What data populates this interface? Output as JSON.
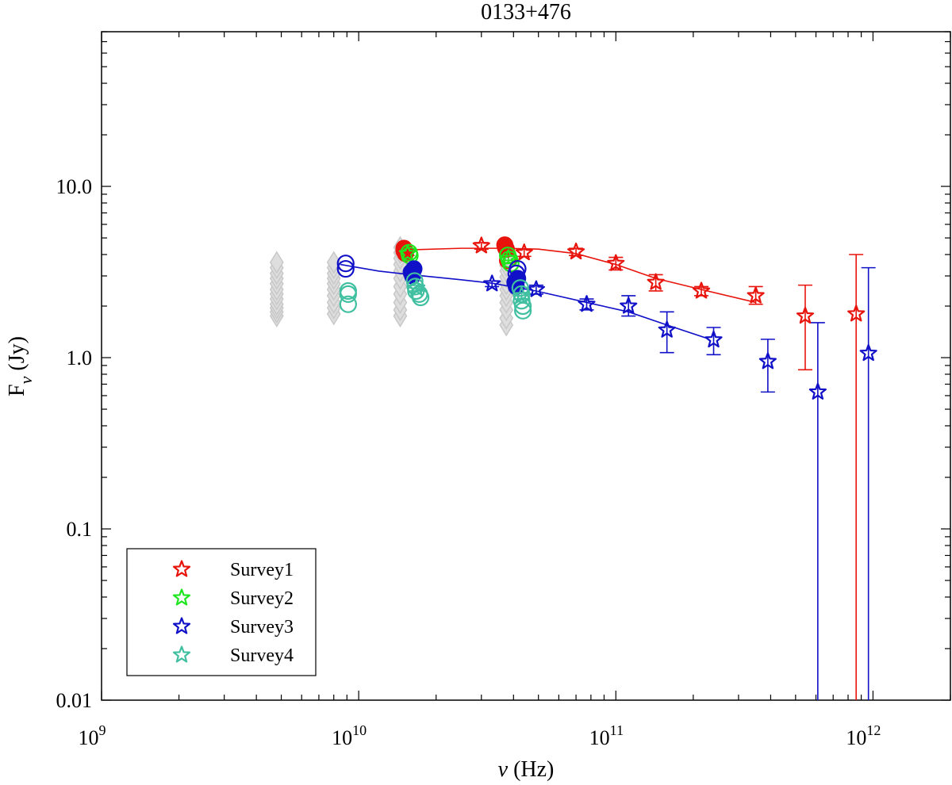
{
  "chart_data": {
    "type": "scatter",
    "title": "0133+476",
    "xlabel_sym": "ν",
    "xlabel_unit": " (Hz)",
    "ylabel_main": "F",
    "ylabel_sub": "ν",
    "ylabel_unit": " (Jy)",
    "x_scale": "log",
    "y_scale": "log",
    "xlim": [
      1000000000.0,
      2000000000000.0
    ],
    "ylim": [
      0.01,
      80
    ],
    "x_ticks": [
      {
        "value": 1000000000.0,
        "base": "10",
        "exp": "9"
      },
      {
        "value": 10000000000.0,
        "base": "10",
        "exp": "10"
      },
      {
        "value": 100000000000.0,
        "base": "10",
        "exp": "11"
      },
      {
        "value": 1000000000000.0,
        "base": "10",
        "exp": "12"
      }
    ],
    "y_ticks": [
      {
        "value": 0.01,
        "label": "0.01"
      },
      {
        "value": 0.1,
        "label": "0.1"
      },
      {
        "value": 1,
        "label": "1.0"
      },
      {
        "value": 10,
        "label": "10.0"
      }
    ],
    "legend_position": "bottom-left",
    "grey_diamonds": [
      {
        "x": 4800000000.0,
        "y": [
          1.75,
          1.85,
          1.95,
          2.05,
          2.2,
          2.35,
          2.5,
          2.7,
          2.9,
          3.1,
          3.35,
          3.6
        ]
      },
      {
        "x": 8000000000.0,
        "y": [
          1.8,
          1.95,
          2.1,
          2.3,
          2.5,
          2.7,
          2.9,
          3.1,
          3.35,
          3.6
        ]
      },
      {
        "x": 14500000000.0,
        "y": [
          1.75,
          1.9,
          2.1,
          2.35,
          2.6,
          2.9,
          3.2,
          3.5,
          3.8,
          4.1,
          4.4
        ]
      },
      {
        "x": 37500000000.0,
        "y": [
          1.55,
          1.7,
          1.9,
          2.1,
          2.3,
          2.5,
          2.7,
          2.95,
          3.2,
          3.45,
          3.7,
          3.95
        ]
      }
    ],
    "series": [
      {
        "name": "Survey1",
        "color": "#e8140c",
        "filled_circles": [
          {
            "x": 15000000000.0,
            "y": 4.35
          },
          {
            "x": 15000000000.0,
            "y": 4.2
          },
          {
            "x": 15200000000.0,
            "y": 4.05
          },
          {
            "x": 37000000000.0,
            "y": 4.55
          },
          {
            "x": 37200000000.0,
            "y": 4.4
          },
          {
            "x": 37500000000.0,
            "y": 4.3
          }
        ],
        "open_circles": [
          {
            "x": 38000000000.0,
            "y": 3.7
          }
        ],
        "stars": [
          {
            "x": 30000000000.0,
            "y": 4.5,
            "lo": 4.3,
            "hi": 4.7
          },
          {
            "x": 44000000000.0,
            "y": 4.1,
            "lo": 3.9,
            "hi": 4.3
          },
          {
            "x": 70000000000.0,
            "y": 4.15,
            "lo": 3.95,
            "hi": 4.35
          },
          {
            "x": 100000000000.0,
            "y": 3.55,
            "lo": 3.25,
            "hi": 3.85
          },
          {
            "x": 143000000000.0,
            "y": 2.75,
            "lo": 2.45,
            "hi": 3.05
          },
          {
            "x": 215000000000.0,
            "y": 2.45,
            "lo": 2.3,
            "hi": 2.6
          },
          {
            "x": 350000000000.0,
            "y": 2.3,
            "lo": 2.05,
            "hi": 2.6
          },
          {
            "x": 545000000000.0,
            "y": 1.75,
            "lo": 0.85,
            "hi": 2.65
          },
          {
            "x": 860000000000.0,
            "y": 1.8,
            "lo": 0.01,
            "hi": 4.0
          }
        ],
        "fit_line": [
          {
            "x": 15000000000.0,
            "y": 4.25
          },
          {
            "x": 25000000000.0,
            "y": 4.35
          },
          {
            "x": 37000000000.0,
            "y": 4.35
          },
          {
            "x": 50000000000.0,
            "y": 4.3
          },
          {
            "x": 70000000000.0,
            "y": 4.05
          },
          {
            "x": 100000000000.0,
            "y": 3.5
          },
          {
            "x": 143000000000.0,
            "y": 2.9
          },
          {
            "x": 215000000000.0,
            "y": 2.5
          },
          {
            "x": 350000000000.0,
            "y": 2.1
          }
        ]
      },
      {
        "name": "Survey2",
        "color": "#1ee61e",
        "filled_circles": [],
        "open_circles": [
          {
            "x": 15700000000.0,
            "y": 4.1
          },
          {
            "x": 15800000000.0,
            "y": 3.95
          },
          {
            "x": 38000000000.0,
            "y": 3.95
          },
          {
            "x": 38500000000.0,
            "y": 3.75
          },
          {
            "x": 39000000000.0,
            "y": 3.55
          }
        ],
        "stars": [
          {
            "x": 15500000000.0,
            "y": 4.05,
            "lo": 3.95,
            "hi": 4.15
          },
          {
            "x": 38200000000.0,
            "y": 3.8,
            "lo": 3.7,
            "hi": 3.9
          }
        ],
        "fit_line": []
      },
      {
        "name": "Survey3",
        "color": "#1010c8",
        "filled_circles": [
          {
            "x": 16000000000.0,
            "y": 3.15
          },
          {
            "x": 16200000000.0,
            "y": 3.0
          },
          {
            "x": 16400000000.0,
            "y": 3.3
          },
          {
            "x": 40500000000.0,
            "y": 2.75
          },
          {
            "x": 41000000000.0,
            "y": 2.6
          },
          {
            "x": 41500000000.0,
            "y": 2.9
          }
        ],
        "open_circles": [
          {
            "x": 8900000000.0,
            "y": 3.55
          },
          {
            "x": 8900000000.0,
            "y": 3.3
          },
          {
            "x": 41000000000.0,
            "y": 3.1
          },
          {
            "x": 41500000000.0,
            "y": 3.3
          }
        ],
        "stars": [
          {
            "x": 33000000000.0,
            "y": 2.7,
            "lo": 2.6,
            "hi": 2.8
          },
          {
            "x": 49000000000.0,
            "y": 2.5,
            "lo": 2.35,
            "hi": 2.65
          },
          {
            "x": 77000000000.0,
            "y": 2.05,
            "lo": 1.9,
            "hi": 2.2
          },
          {
            "x": 112000000000.0,
            "y": 2.0,
            "lo": 1.75,
            "hi": 2.3
          },
          {
            "x": 158000000000.0,
            "y": 1.45,
            "lo": 1.07,
            "hi": 1.85
          },
          {
            "x": 240000000000.0,
            "y": 1.27,
            "lo": 1.04,
            "hi": 1.5
          },
          {
            "x": 390000000000.0,
            "y": 0.95,
            "lo": 0.63,
            "hi": 1.28
          },
          {
            "x": 610000000000.0,
            "y": 0.63,
            "lo": 0.01,
            "hi": 1.6
          },
          {
            "x": 960000000000.0,
            "y": 1.06,
            "lo": 0.01,
            "hi": 3.35
          }
        ],
        "fit_line": [
          {
            "x": 8500000000.0,
            "y": 3.5
          },
          {
            "x": 12000000000.0,
            "y": 3.2
          },
          {
            "x": 16000000000.0,
            "y": 3.05
          },
          {
            "x": 25000000000.0,
            "y": 2.85
          },
          {
            "x": 33000000000.0,
            "y": 2.72
          },
          {
            "x": 49000000000.0,
            "y": 2.45
          },
          {
            "x": 77000000000.0,
            "y": 2.1
          },
          {
            "x": 112000000000.0,
            "y": 1.85
          },
          {
            "x": 158000000000.0,
            "y": 1.55
          },
          {
            "x": 225000000000.0,
            "y": 1.3
          }
        ]
      },
      {
        "name": "Survey4",
        "color": "#40c0a0",
        "filled_circles": [],
        "open_circles": [
          {
            "x": 9100000000.0,
            "y": 2.45
          },
          {
            "x": 9100000000.0,
            "y": 2.35
          },
          {
            "x": 9100000000.0,
            "y": 2.05
          },
          {
            "x": 16500000000.0,
            "y": 2.8
          },
          {
            "x": 16600000000.0,
            "y": 2.6
          },
          {
            "x": 16700000000.0,
            "y": 2.45
          },
          {
            "x": 17200000000.0,
            "y": 2.35
          },
          {
            "x": 17400000000.0,
            "y": 2.25
          },
          {
            "x": 42500000000.0,
            "y": 2.55
          },
          {
            "x": 43000000000.0,
            "y": 2.35
          },
          {
            "x": 43000000000.0,
            "y": 2.15
          },
          {
            "x": 43500000000.0,
            "y": 2.0
          },
          {
            "x": 43500000000.0,
            "y": 1.88
          }
        ],
        "stars": [
          {
            "x": 16800000000.0,
            "y": 2.55,
            "lo": 2.45,
            "hi": 2.65
          },
          {
            "x": 43000000000.0,
            "y": 2.3,
            "lo": 2.2,
            "hi": 2.4
          }
        ],
        "fit_line": []
      }
    ]
  }
}
